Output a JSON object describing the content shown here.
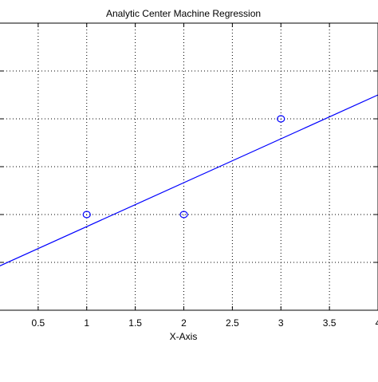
{
  "chart_data": {
    "type": "scatter",
    "title": "Analytic Center Machine Regression",
    "xlabel": "X-Axis",
    "ylabel": "",
    "xlim": [
      0,
      4
    ],
    "ylim": [
      0,
      6
    ],
    "xticks": [
      0.5,
      1,
      1.5,
      2,
      2.5,
      3,
      3.5,
      4
    ],
    "xtick_labels": [
      "0.5",
      "1",
      "1.5",
      "2",
      "2.5",
      "3",
      "3.5",
      "4"
    ],
    "yticks": [
      1,
      2,
      3,
      4,
      5
    ],
    "grid": true,
    "series": [
      {
        "type": "scatter",
        "marker": "circle",
        "color": "#0000ff",
        "x": [
          1,
          2,
          3
        ],
        "y": [
          2,
          2,
          4
        ]
      },
      {
        "type": "line",
        "color": "#0000ff",
        "x": [
          0,
          4
        ],
        "y": [
          0.83,
          4.5
        ]
      }
    ]
  }
}
